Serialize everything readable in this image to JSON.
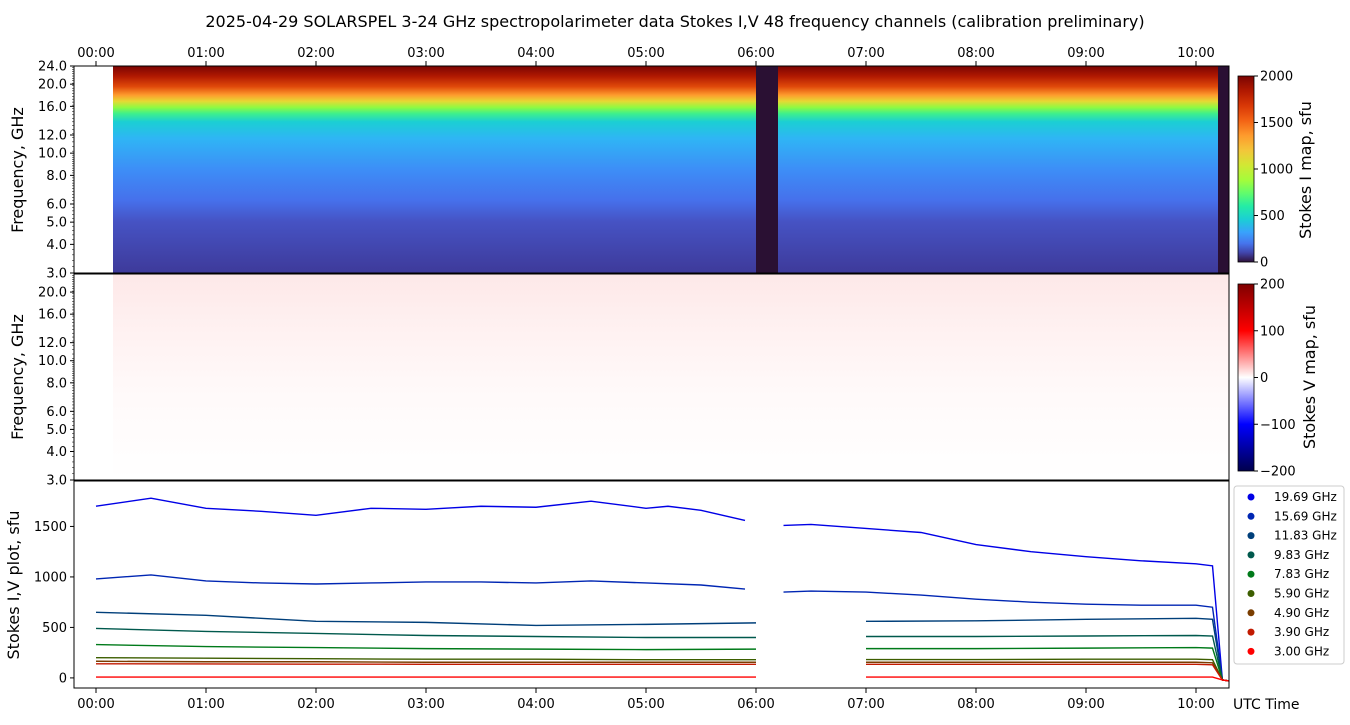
{
  "title": "2025-04-29  SOLARSPEL  3-24 GHz spectropolarimeter data   Stokes I,V   48 frequency channels   (calibration preliminary)",
  "colors": {
    "stokes_i_cmap": [
      "#30123b",
      "#4145ab",
      "#4675ed",
      "#39a2fc",
      "#1bcfd4",
      "#24eca6",
      "#61fc6c",
      "#a4fc3b",
      "#d1e834",
      "#f3c63a",
      "#fe9b2d",
      "#f36315",
      "#d93806",
      "#b11901",
      "#7a0402"
    ],
    "stokes_v_cmap": [
      "#00004c",
      "#0000ff",
      "#ffffff",
      "#ff0000",
      "#7f0000"
    ],
    "gap_color": "#2a1033"
  },
  "time_axis": {
    "ticks": [
      "00:00",
      "01:00",
      "02:00",
      "03:00",
      "04:00",
      "05:00",
      "06:00",
      "07:00",
      "08:00",
      "09:00",
      "10:00"
    ],
    "label": "UTC Time"
  },
  "panel_i": {
    "ylabel": "Frequency, GHz",
    "yticks": [
      "24.0",
      "20.0",
      "16.0",
      "12.0",
      "10.0",
      "8.0",
      "6.0",
      "5.0",
      "4.0",
      "3.0"
    ],
    "cbar_label": "Stokes I map, sfu",
    "cbar_ticks": [
      "2000",
      "1500",
      "1000",
      "500",
      "0"
    ]
  },
  "panel_v": {
    "ylabel": "Frequency, GHz",
    "yticks": [
      "20.0",
      "16.0",
      "12.0",
      "10.0",
      "8.0",
      "6.0",
      "5.0",
      "4.0",
      "3.0"
    ],
    "cbar_label": "Stokes V map, sfu",
    "cbar_ticks": [
      "200",
      "100",
      "0",
      "−100",
      "−200"
    ]
  },
  "panel_plot": {
    "ylabel": "Stokes I,V plot, sfu",
    "yticks": [
      "1500",
      "1000",
      "500",
      "0"
    ]
  },
  "legend": [
    {
      "label": "19.69 GHz",
      "color": "#0000e6"
    },
    {
      "label": "15.69 GHz",
      "color": "#0026b3"
    },
    {
      "label": "11.83 GHz",
      "color": "#003f7a"
    },
    {
      "label": "9.83 GHz",
      "color": "#00594d"
    },
    {
      "label": "7.83 GHz",
      "color": "#007a1a"
    },
    {
      "label": "5.90 GHz",
      "color": "#3d5e00"
    },
    {
      "label": "4.90 GHz",
      "color": "#7a3d00"
    },
    {
      "label": "3.90 GHz",
      "color": "#c21a00"
    },
    {
      "label": "3.00 GHz",
      "color": "#ff0000"
    }
  ],
  "chart_data": {
    "type": "line",
    "x_unit": "hours UTC",
    "xlim": [
      -0.2,
      10.3
    ],
    "data_gap_hours": [
      6.0,
      6.2
    ],
    "drop_after_hours": 10.2,
    "ylim": [
      -100,
      1950
    ],
    "series": [
      {
        "name": "19.69 GHz",
        "x": [
          0,
          0.5,
          1,
          1.5,
          2,
          2.5,
          3,
          3.5,
          4,
          4.5,
          5,
          5.2,
          5.5,
          5.9,
          6.25,
          6.5,
          7,
          7.5,
          8,
          8.5,
          9,
          9.5,
          10,
          10.15
        ],
        "values": [
          1700,
          1780,
          1680,
          1650,
          1610,
          1680,
          1670,
          1700,
          1690,
          1750,
          1680,
          1700,
          1660,
          1560,
          1510,
          1520,
          1480,
          1440,
          1320,
          1250,
          1200,
          1160,
          1130,
          1110
        ]
      },
      {
        "name": "15.69 GHz",
        "x": [
          0,
          0.5,
          1,
          1.5,
          2,
          2.5,
          3,
          3.5,
          4,
          4.5,
          5,
          5.5,
          5.9,
          6.25,
          6.5,
          7,
          7.5,
          8,
          8.5,
          9,
          9.5,
          10,
          10.15
        ],
        "values": [
          980,
          1020,
          960,
          940,
          930,
          940,
          950,
          950,
          940,
          960,
          940,
          920,
          880,
          850,
          860,
          850,
          820,
          780,
          750,
          730,
          720,
          720,
          700
        ]
      },
      {
        "name": "11.83 GHz",
        "x": [
          0,
          1,
          2,
          3,
          4,
          5,
          6,
          7,
          8,
          9,
          10,
          10.15
        ],
        "values": [
          650,
          620,
          560,
          550,
          520,
          530,
          545,
          560,
          565,
          580,
          590,
          580
        ]
      },
      {
        "name": "9.83 GHz",
        "x": [
          0,
          1,
          2,
          3,
          4,
          5,
          6,
          7,
          8,
          9,
          10,
          10.15
        ],
        "values": [
          490,
          460,
          440,
          420,
          410,
          400,
          400,
          410,
          410,
          415,
          420,
          415
        ]
      },
      {
        "name": "7.83 GHz",
        "x": [
          0,
          1,
          2,
          3,
          4,
          5,
          6,
          7,
          8,
          9,
          10,
          10.15
        ],
        "values": [
          330,
          310,
          300,
          290,
          285,
          280,
          285,
          290,
          290,
          295,
          300,
          295
        ]
      },
      {
        "name": "5.90 GHz",
        "x": [
          0,
          1,
          2,
          3,
          4,
          5,
          6,
          7,
          8,
          9,
          10,
          10.15
        ],
        "values": [
          200,
          195,
          190,
          185,
          185,
          180,
          180,
          182,
          182,
          185,
          185,
          180
        ]
      },
      {
        "name": "4.90 GHz",
        "x": [
          0,
          1,
          2,
          3,
          4,
          5,
          6,
          7,
          8,
          9,
          10,
          10.15
        ],
        "values": [
          165,
          160,
          160,
          155,
          155,
          155,
          155,
          155,
          155,
          155,
          155,
          150
        ]
      },
      {
        "name": "3.90 GHz",
        "x": [
          0,
          1,
          2,
          3,
          4,
          5,
          6,
          7,
          8,
          9,
          10,
          10.15
        ],
        "values": [
          140,
          138,
          136,
          135,
          135,
          135,
          135,
          135,
          135,
          135,
          135,
          130
        ]
      },
      {
        "name": "3.00 GHz",
        "x": [
          0,
          1,
          2,
          3,
          4,
          5,
          6,
          7,
          8,
          9,
          10,
          10.15
        ],
        "values": [
          8,
          8,
          8,
          8,
          8,
          8,
          8,
          8,
          8,
          8,
          8,
          8
        ]
      }
    ]
  }
}
